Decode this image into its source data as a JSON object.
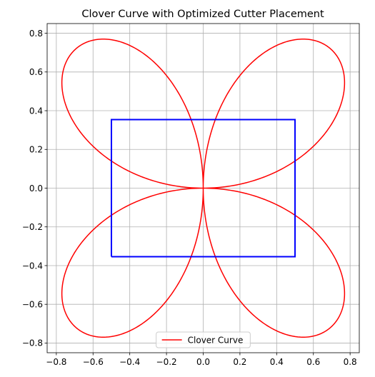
{
  "chart_data": {
    "type": "line",
    "title": "Clover Curve with Optimized Cutter Placement",
    "xlabel": "",
    "ylabel": "",
    "xlim": [
      -0.85,
      0.85
    ],
    "ylim": [
      -0.85,
      0.85
    ],
    "xticks": [
      -0.8,
      -0.6,
      -0.4,
      -0.2,
      0.0,
      0.2,
      0.4,
      0.6,
      0.8
    ],
    "yticks": [
      -0.8,
      -0.6,
      -0.4,
      -0.2,
      0.0,
      0.2,
      0.4,
      0.6,
      0.8
    ],
    "xtick_labels": [
      "−0.8",
      "−0.6",
      "−0.4",
      "−0.2",
      "0.0",
      "0.2",
      "0.4",
      "0.6",
      "0.8"
    ],
    "ytick_labels": [
      "−0.8",
      "−0.6",
      "−0.4",
      "−0.2",
      "0.0",
      "0.2",
      "0.4",
      "0.6",
      "0.8"
    ],
    "grid": true,
    "legend_position": "bottom-center",
    "series": [
      {
        "name": "Clover Curve",
        "color": "#ff0000",
        "curve": "polar r = sin(2θ), θ from 0 to 2π",
        "extent": {
          "x": [
            -0.77,
            0.77
          ],
          "y": [
            -0.77,
            0.77
          ]
        }
      },
      {
        "color": "#0000ff",
        "shape": "rectangle",
        "x": [
          -0.5,
          0.5,
          0.5,
          -0.5,
          -0.5
        ],
        "y": [
          -0.354,
          -0.354,
          0.354,
          0.354,
          -0.354
        ]
      }
    ]
  }
}
